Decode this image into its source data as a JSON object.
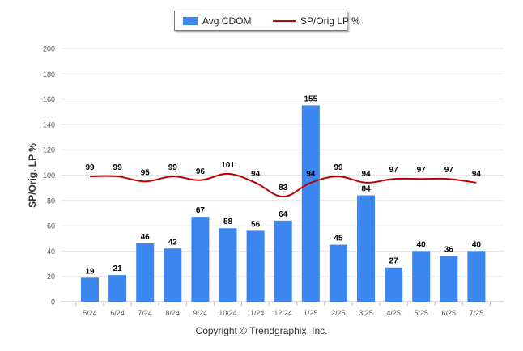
{
  "chart_data": {
    "type": "bar",
    "categories": [
      "5/24",
      "6/24",
      "7/24",
      "8/24",
      "9/24",
      "10/24",
      "11/24",
      "12/24",
      "1/25",
      "2/25",
      "3/25",
      "4/25",
      "5/25",
      "6/25",
      "7/25"
    ],
    "series": [
      {
        "name": "Avg CDOM",
        "type": "bar",
        "color": "#3c86f0",
        "values": [
          19,
          21,
          46,
          42,
          67,
          58,
          56,
          64,
          155,
          45,
          84,
          27,
          40,
          36,
          40
        ]
      },
      {
        "name": "SP/Orig LP %",
        "type": "line",
        "color": "#c00000",
        "values": [
          99,
          99,
          95,
          99,
          96,
          101,
          94,
          83,
          94,
          99,
          94,
          97,
          97,
          97,
          94
        ]
      }
    ],
    "ylabel": "SP/Orig. LP %",
    "ylim": [
      0,
      200
    ],
    "yticks": [
      0,
      20,
      40,
      60,
      80,
      100,
      120,
      140,
      160,
      180,
      200
    ],
    "grid": true,
    "legend_position": "top-center"
  },
  "footer": "Copyright © Trendgraphix, Inc."
}
